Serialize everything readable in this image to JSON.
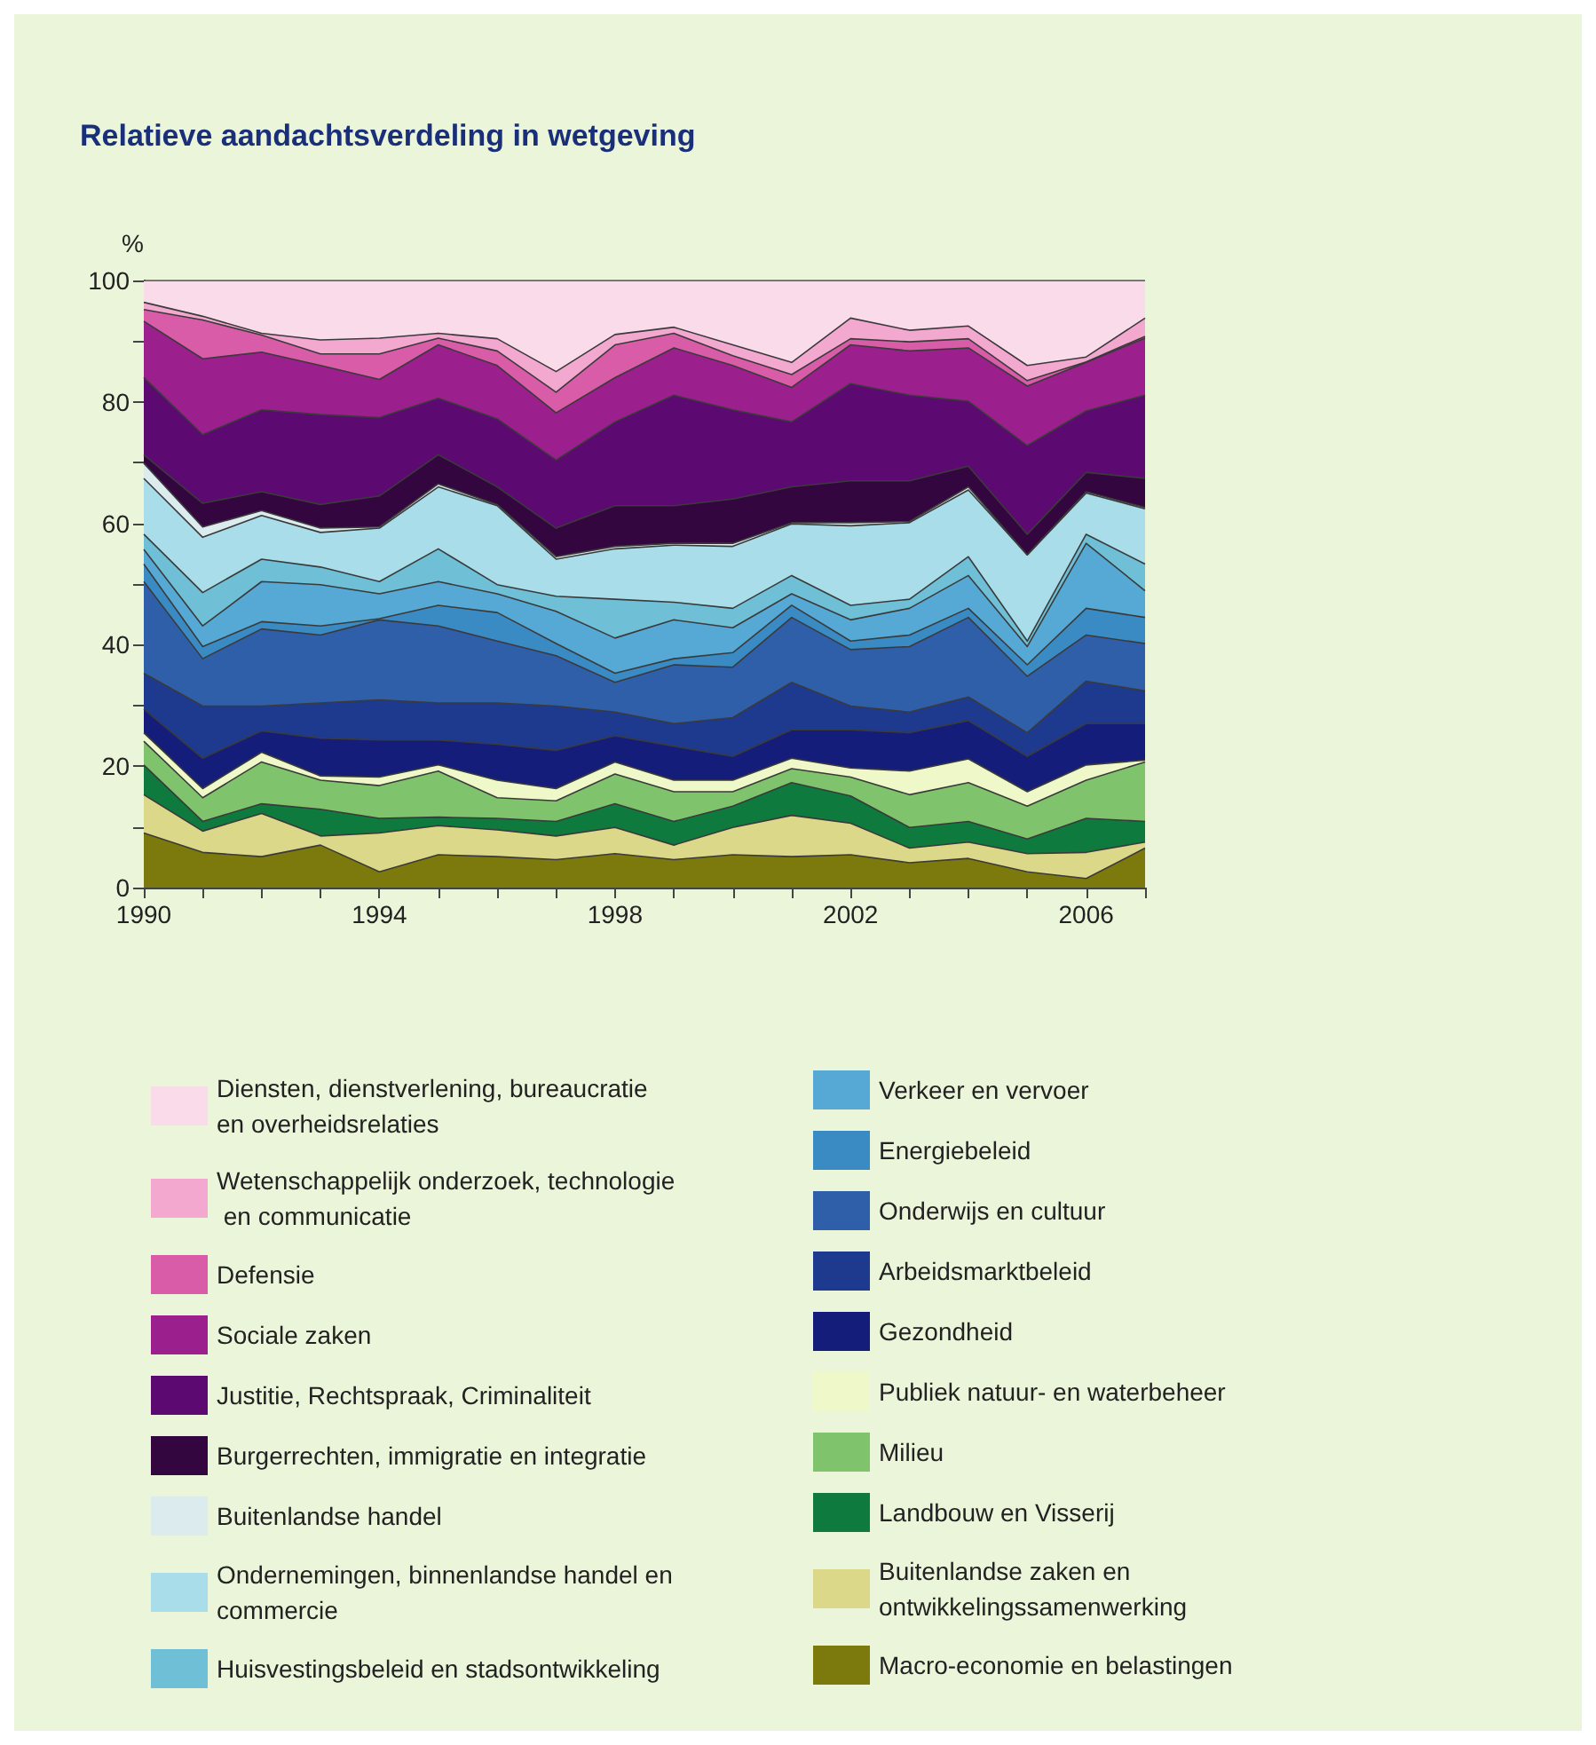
{
  "chart_data": {
    "type": "area",
    "title": "Relatieve aandachtsverdeling in wetgeving",
    "ylabel": "%",
    "stacked": true,
    "legend": "bottom",
    "x": [
      1990,
      1991,
      1992,
      1993,
      1994,
      1995,
      1996,
      1997,
      1998,
      1999,
      2000,
      2001,
      2002,
      2003,
      2004,
      2005,
      2006,
      2007
    ],
    "xlim": [
      1990,
      2007
    ],
    "xticks": [
      1990,
      {
        "value": 1991,
        "label": null
      },
      {
        "value": 1992,
        "label": null
      },
      {
        "value": 1993,
        "label": null
      },
      1994,
      {
        "value": 1995,
        "label": null
      },
      {
        "value": 1996,
        "label": null
      },
      {
        "value": 1997,
        "label": null
      },
      1998,
      {
        "value": 1999,
        "label": null
      },
      {
        "value": 2000,
        "label": null
      },
      {
        "value": 2001,
        "label": null
      },
      2002,
      {
        "value": 2003,
        "label": null
      },
      {
        "value": 2004,
        "label": null
      },
      {
        "value": 2005,
        "label": null
      },
      2006,
      {
        "value": 2007,
        "label": null
      }
    ],
    "ylim": [
      0,
      100
    ],
    "yticks": [
      0,
      {
        "value": 10,
        "label": null
      },
      20,
      {
        "value": 30,
        "label": null
      },
      40,
      {
        "value": 50,
        "label": null
      },
      60,
      {
        "value": 70,
        "label": null
      },
      80,
      {
        "value": 90,
        "label": null
      },
      100
    ],
    "series": [
      {
        "name": "Macro-economie en belastingen",
        "color": "#7d7a0d",
        "values": [
          9.0,
          5.8,
          5.1,
          7.0,
          2.6,
          5.4,
          5.1,
          4.6,
          5.6,
          4.6,
          5.4,
          5.1,
          5.4,
          4.1,
          4.8,
          2.6,
          1.5,
          6.5
        ]
      },
      {
        "name": "Buitenlandse zaken en ontwikkelingssamenwerking",
        "color": "#dcd88a",
        "values": [
          6.3,
          3.5,
          7.1,
          1.5,
          6.4,
          4.8,
          4.4,
          3.9,
          4.3,
          2.4,
          4.5,
          6.8,
          5.2,
          2.4,
          2.7,
          3.0,
          4.3,
          1.0
        ]
      },
      {
        "name": "Landbouw en Visserij",
        "color": "#0e7a3d",
        "values": [
          4.9,
          1.6,
          1.6,
          4.4,
          2.4,
          1.4,
          1.9,
          2.4,
          3.9,
          3.9,
          3.5,
          5.4,
          4.5,
          3.4,
          3.4,
          2.4,
          5.6,
          3.4
        ]
      },
      {
        "name": "Milieu",
        "color": "#7fc46c",
        "values": [
          3.9,
          3.9,
          6.9,
          4.8,
          5.4,
          7.6,
          3.4,
          3.4,
          4.9,
          4.9,
          2.4,
          2.3,
          3.1,
          5.4,
          6.4,
          5.4,
          6.3,
          9.8
        ]
      },
      {
        "name": "Publiek natuur- en waterbeheer",
        "color": "#eef8c8",
        "values": [
          1.4,
          1.5,
          1.6,
          0.7,
          1.4,
          1.0,
          2.9,
          2.0,
          2.0,
          1.9,
          1.9,
          1.7,
          1.5,
          3.9,
          3.9,
          2.4,
          2.5,
          0.3
        ]
      },
      {
        "name": "Gezondheid",
        "color": "#151d7a",
        "values": [
          3.9,
          5.0,
          3.5,
          6.2,
          6.1,
          4.1,
          5.9,
          6.3,
          4.3,
          5.6,
          3.9,
          4.7,
          6.3,
          6.3,
          6.3,
          5.8,
          6.8,
          6.0
        ]
      },
      {
        "name": "Arbeidsmarktbeleid",
        "color": "#1d3a8f",
        "values": [
          5.9,
          8.6,
          4.1,
          5.8,
          6.6,
          6.1,
          6.8,
          7.3,
          3.9,
          3.7,
          6.4,
          7.8,
          3.9,
          3.4,
          3.9,
          3.9,
          7.0,
          5.4
        ]
      },
      {
        "name": "Onderwijs en cultuur",
        "color": "#2f5fa8",
        "values": [
          15.1,
          7.8,
          12.7,
          11.2,
          13.2,
          12.7,
          10.2,
          8.3,
          4.9,
          9.7,
          8.3,
          10.7,
          9.3,
          10.8,
          13.1,
          9.3,
          7.6,
          7.8
        ]
      },
      {
        "name": "Energiebeleid",
        "color": "#3a8ac4",
        "values": [
          2.9,
          2.0,
          1.2,
          1.5,
          0.2,
          3.4,
          4.7,
          2.0,
          1.5,
          1.0,
          2.4,
          2.0,
          1.4,
          1.9,
          1.5,
          1.9,
          4.4,
          4.3
        ]
      },
      {
        "name": "Verkeer en vervoer",
        "color": "#56a9d4",
        "values": [
          2.4,
          3.4,
          6.6,
          6.8,
          4.1,
          3.9,
          3.1,
          5.3,
          5.8,
          6.4,
          4.1,
          1.9,
          3.5,
          4.4,
          5.4,
          3.0,
          10.7,
          4.4
        ]
      },
      {
        "name": "Huisvestingsbeleid en stadsontwikkeling",
        "color": "#6fbfd6",
        "values": [
          2.5,
          5.5,
          3.7,
          2.9,
          2.0,
          5.4,
          1.5,
          2.5,
          6.4,
          2.9,
          3.2,
          3.0,
          2.4,
          1.5,
          3.1,
          0.9,
          1.5,
          4.4
        ]
      },
      {
        "name": "Ondernemingen, binnenlandse handel en commercie",
        "color": "#a9dde9",
        "values": [
          9.2,
          9.1,
          7.2,
          5.7,
          8.8,
          10.2,
          13.0,
          6.1,
          8.3,
          9.4,
          10.2,
          8.5,
          13.1,
          12.6,
          11.0,
          14.2,
          6.8,
          9.1
        ]
      },
      {
        "name": "Buitenlandse handel",
        "color": "#dcecee",
        "values": [
          2.5,
          1.7,
          0.8,
          0.7,
          0.2,
          0.5,
          0.2,
          0.4,
          0.4,
          0.3,
          0.5,
          0.2,
          0.5,
          0.2,
          0.5,
          0.0,
          0.2,
          0.2
        ]
      },
      {
        "name": "Burgerrechten, immigratie en integratie",
        "color": "#33063f",
        "values": [
          1.4,
          3.9,
          3.1,
          3.9,
          5.1,
          4.8,
          2.9,
          4.7,
          6.7,
          6.2,
          7.3,
          5.9,
          6.9,
          6.7,
          3.4,
          3.4,
          3.2,
          4.8
        ]
      },
      {
        "name": "Justitie, Rechtspraak, Criminaliteit",
        "color": "#5c0a72",
        "values": [
          12.7,
          11.3,
          13.5,
          14.8,
          12.9,
          9.3,
          11.2,
          11.2,
          13.8,
          18.2,
          14.7,
          10.7,
          16.0,
          14.1,
          10.7,
          14.6,
          10.1,
          13.7
        ]
      },
      {
        "name": "Sociale zaken",
        "color": "#9c1f8e",
        "values": [
          9.3,
          12.5,
          9.5,
          8.1,
          6.3,
          8.8,
          8.8,
          7.8,
          7.3,
          7.8,
          7.3,
          5.7,
          6.4,
          7.3,
          8.8,
          9.8,
          8.0,
          9.4
        ]
      },
      {
        "name": "Defensie",
        "color": "#d95ca8",
        "values": [
          1.9,
          6.4,
          2.8,
          1.9,
          4.2,
          1.1,
          2.4,
          3.4,
          5.4,
          2.4,
          1.6,
          2.1,
          1.0,
          1.5,
          1.5,
          0.9,
          0.1,
          0.3
        ]
      },
      {
        "name": "Wetenschappelijk onderzoek, technologie en communicatie",
        "color": "#f2a8cf",
        "values": [
          1.2,
          0.6,
          0.3,
          2.3,
          2.6,
          0.8,
          2.0,
          3.4,
          1.7,
          1.0,
          1.8,
          2.0,
          3.4,
          1.9,
          2.1,
          2.5,
          0.8,
          3.0
        ]
      },
      {
        "name": "Diensten, dienstverlening, bureaucratie en overheidsrelaties",
        "color": "#fadbea",
        "values": [
          3.6,
          5.9,
          8.7,
          9.8,
          9.5,
          8.7,
          9.6,
          15.0,
          8.9,
          7.7,
          10.6,
          13.5,
          6.2,
          8.2,
          7.5,
          14.0,
          12.6,
          6.2
        ]
      }
    ]
  }
}
